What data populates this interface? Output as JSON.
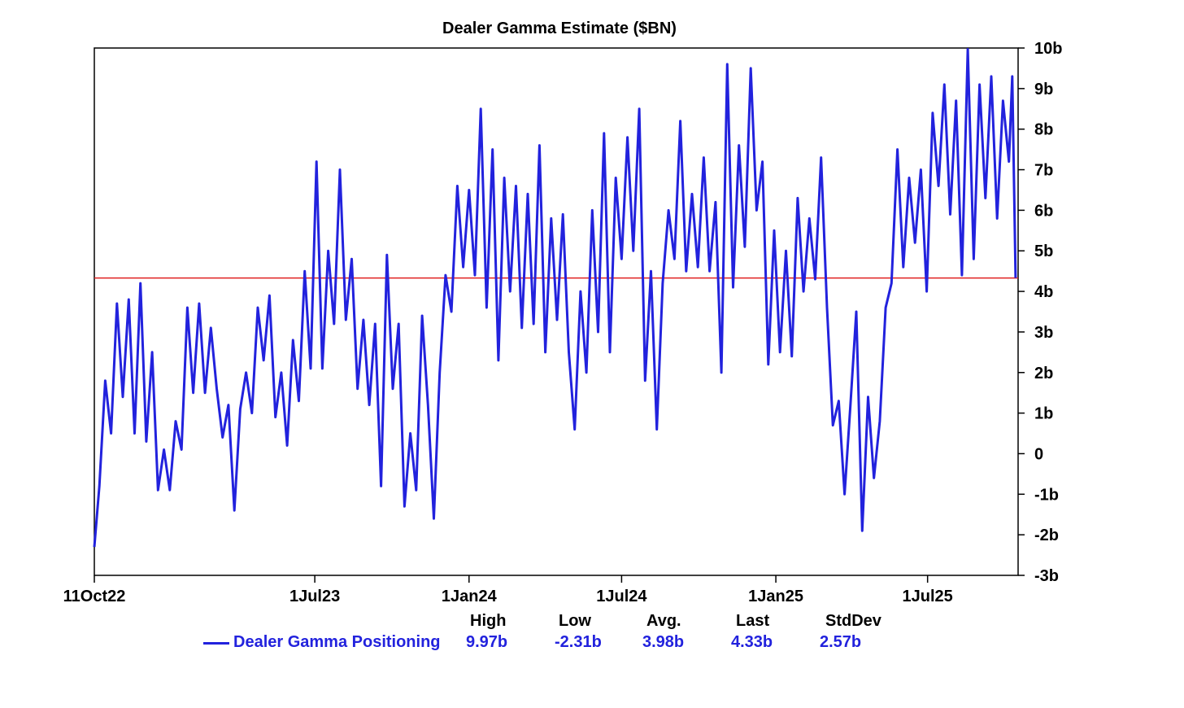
{
  "chart_data": {
    "type": "line",
    "title": "Dealer Gamma Estimate ($BN)",
    "xlabel": "",
    "ylabel": "",
    "x_range": [
      "2022-10-11",
      "2025-10-17"
    ],
    "ylim": [
      -3,
      10
    ],
    "y_ticks": [
      -3,
      -2,
      -1,
      0,
      1,
      2,
      3,
      4,
      5,
      6,
      7,
      8,
      9,
      10
    ],
    "y_tick_labels": [
      "-3b",
      "-2b",
      "-1b",
      "0",
      "1b",
      "2b",
      "3b",
      "4b",
      "5b",
      "6b",
      "7b",
      "8b",
      "9b",
      "10b"
    ],
    "x_ticks": [
      {
        "date": "2022-10-11",
        "label": "11Oct22"
      },
      {
        "date": "2023-07-01",
        "label": "1Jul23"
      },
      {
        "date": "2024-01-01",
        "label": "1Jan24"
      },
      {
        "date": "2024-07-01",
        "label": "1Jul24"
      },
      {
        "date": "2025-01-01",
        "label": "1Jan25"
      },
      {
        "date": "2025-07-01",
        "label": "1Jul25"
      }
    ],
    "reference_line": {
      "value": 4.33,
      "color": "#e02020"
    },
    "grid": false,
    "series": [
      {
        "name": "Dealer Gamma Positioning",
        "color": "#2222dd",
        "stats": {
          "high": "9.97b",
          "low": "-2.31b",
          "avg": "3.98b",
          "last": "4.33b",
          "stddev": "2.57b"
        },
        "points": [
          [
            "2022-10-11",
            -2.3
          ],
          [
            "2022-10-17",
            -0.8
          ],
          [
            "2022-10-24",
            1.8
          ],
          [
            "2022-10-31",
            0.5
          ],
          [
            "2022-11-07",
            3.7
          ],
          [
            "2022-11-14",
            1.4
          ],
          [
            "2022-11-21",
            3.8
          ],
          [
            "2022-11-28",
            0.5
          ],
          [
            "2022-12-05",
            4.2
          ],
          [
            "2022-12-12",
            0.3
          ],
          [
            "2022-12-19",
            2.5
          ],
          [
            "2022-12-26",
            -0.9
          ],
          [
            "2023-01-02",
            0.1
          ],
          [
            "2023-01-09",
            -0.9
          ],
          [
            "2023-01-16",
            0.8
          ],
          [
            "2023-01-23",
            0.1
          ],
          [
            "2023-01-30",
            3.6
          ],
          [
            "2023-02-06",
            1.5
          ],
          [
            "2023-02-13",
            3.7
          ],
          [
            "2023-02-20",
            1.5
          ],
          [
            "2023-02-27",
            3.1
          ],
          [
            "2023-03-06",
            1.6
          ],
          [
            "2023-03-13",
            0.4
          ],
          [
            "2023-03-20",
            1.2
          ],
          [
            "2023-03-27",
            -1.4
          ],
          [
            "2023-04-03",
            1.1
          ],
          [
            "2023-04-10",
            2.0
          ],
          [
            "2023-04-17",
            1.0
          ],
          [
            "2023-04-24",
            3.6
          ],
          [
            "2023-05-01",
            2.3
          ],
          [
            "2023-05-08",
            3.9
          ],
          [
            "2023-05-15",
            0.9
          ],
          [
            "2023-05-22",
            2.0
          ],
          [
            "2023-05-29",
            0.2
          ],
          [
            "2023-06-05",
            2.8
          ],
          [
            "2023-06-12",
            1.3
          ],
          [
            "2023-06-19",
            4.5
          ],
          [
            "2023-06-26",
            2.1
          ],
          [
            "2023-07-03",
            7.2
          ],
          [
            "2023-07-10",
            2.1
          ],
          [
            "2023-07-17",
            5.0
          ],
          [
            "2023-07-24",
            3.2
          ],
          [
            "2023-07-31",
            7.0
          ],
          [
            "2023-08-07",
            3.3
          ],
          [
            "2023-08-14",
            4.8
          ],
          [
            "2023-08-21",
            1.6
          ],
          [
            "2023-08-28",
            3.3
          ],
          [
            "2023-09-04",
            1.2
          ],
          [
            "2023-09-11",
            3.2
          ],
          [
            "2023-09-18",
            -0.8
          ],
          [
            "2023-09-25",
            4.9
          ],
          [
            "2023-10-02",
            1.6
          ],
          [
            "2023-10-09",
            3.2
          ],
          [
            "2023-10-16",
            -1.3
          ],
          [
            "2023-10-23",
            0.5
          ],
          [
            "2023-10-30",
            -0.9
          ],
          [
            "2023-11-06",
            3.4
          ],
          [
            "2023-11-13",
            1.2
          ],
          [
            "2023-11-20",
            -1.6
          ],
          [
            "2023-11-27",
            2.0
          ],
          [
            "2023-12-04",
            4.4
          ],
          [
            "2023-12-11",
            3.5
          ],
          [
            "2023-12-18",
            6.6
          ],
          [
            "2023-12-25",
            4.6
          ],
          [
            "2024-01-01",
            6.5
          ],
          [
            "2024-01-08",
            4.4
          ],
          [
            "2024-01-15",
            8.5
          ],
          [
            "2024-01-22",
            3.6
          ],
          [
            "2024-01-29",
            7.5
          ],
          [
            "2024-02-05",
            2.3
          ],
          [
            "2024-02-12",
            6.8
          ],
          [
            "2024-02-19",
            4.0
          ],
          [
            "2024-02-26",
            6.6
          ],
          [
            "2024-03-04",
            3.1
          ],
          [
            "2024-03-11",
            6.4
          ],
          [
            "2024-03-18",
            3.2
          ],
          [
            "2024-03-25",
            7.6
          ],
          [
            "2024-04-01",
            2.5
          ],
          [
            "2024-04-08",
            5.8
          ],
          [
            "2024-04-15",
            3.3
          ],
          [
            "2024-04-22",
            5.9
          ],
          [
            "2024-04-29",
            2.5
          ],
          [
            "2024-05-06",
            0.6
          ],
          [
            "2024-05-13",
            4.0
          ],
          [
            "2024-05-20",
            2.0
          ],
          [
            "2024-05-27",
            6.0
          ],
          [
            "2024-06-03",
            3.0
          ],
          [
            "2024-06-10",
            7.9
          ],
          [
            "2024-06-17",
            2.5
          ],
          [
            "2024-06-24",
            6.8
          ],
          [
            "2024-07-01",
            4.8
          ],
          [
            "2024-07-08",
            7.8
          ],
          [
            "2024-07-15",
            5.0
          ],
          [
            "2024-07-22",
            8.5
          ],
          [
            "2024-07-29",
            1.8
          ],
          [
            "2024-08-05",
            4.5
          ],
          [
            "2024-08-12",
            0.6
          ],
          [
            "2024-08-19",
            4.2
          ],
          [
            "2024-08-26",
            6.0
          ],
          [
            "2024-09-02",
            4.8
          ],
          [
            "2024-09-09",
            8.2
          ],
          [
            "2024-09-16",
            4.5
          ],
          [
            "2024-09-23",
            6.4
          ],
          [
            "2024-09-30",
            4.6
          ],
          [
            "2024-10-07",
            7.3
          ],
          [
            "2024-10-14",
            4.5
          ],
          [
            "2024-10-21",
            6.2
          ],
          [
            "2024-10-28",
            2.0
          ],
          [
            "2024-11-04",
            9.6
          ],
          [
            "2024-11-11",
            4.1
          ],
          [
            "2024-11-18",
            7.6
          ],
          [
            "2024-11-25",
            5.1
          ],
          [
            "2024-12-02",
            9.5
          ],
          [
            "2024-12-09",
            6.0
          ],
          [
            "2024-12-16",
            7.2
          ],
          [
            "2024-12-23",
            2.2
          ],
          [
            "2024-12-30",
            5.5
          ],
          [
            "2025-01-06",
            2.5
          ],
          [
            "2025-01-13",
            5.0
          ],
          [
            "2025-01-20",
            2.4
          ],
          [
            "2025-01-27",
            6.3
          ],
          [
            "2025-02-03",
            4.0
          ],
          [
            "2025-02-10",
            5.8
          ],
          [
            "2025-02-17",
            4.3
          ],
          [
            "2025-02-24",
            7.3
          ],
          [
            "2025-03-03",
            3.6
          ],
          [
            "2025-03-10",
            0.7
          ],
          [
            "2025-03-17",
            1.3
          ],
          [
            "2025-03-24",
            -1.0
          ],
          [
            "2025-03-31",
            1.2
          ],
          [
            "2025-04-07",
            3.5
          ],
          [
            "2025-04-14",
            -1.9
          ],
          [
            "2025-04-21",
            1.4
          ],
          [
            "2025-04-28",
            -0.6
          ],
          [
            "2025-05-05",
            0.8
          ],
          [
            "2025-05-12",
            3.6
          ],
          [
            "2025-05-19",
            4.2
          ],
          [
            "2025-05-26",
            7.5
          ],
          [
            "2025-06-02",
            4.6
          ],
          [
            "2025-06-09",
            6.8
          ],
          [
            "2025-06-16",
            5.2
          ],
          [
            "2025-06-23",
            7.0
          ],
          [
            "2025-06-30",
            4.0
          ],
          [
            "2025-07-07",
            8.4
          ],
          [
            "2025-07-14",
            6.6
          ],
          [
            "2025-07-21",
            9.1
          ],
          [
            "2025-07-28",
            5.9
          ],
          [
            "2025-08-04",
            8.7
          ],
          [
            "2025-08-11",
            4.4
          ],
          [
            "2025-08-18",
            9.97
          ],
          [
            "2025-08-25",
            4.8
          ],
          [
            "2025-09-01",
            9.1
          ],
          [
            "2025-09-08",
            6.3
          ],
          [
            "2025-09-15",
            9.3
          ],
          [
            "2025-09-22",
            5.8
          ],
          [
            "2025-09-29",
            8.7
          ],
          [
            "2025-10-06",
            7.2
          ],
          [
            "2025-10-10",
            9.3
          ],
          [
            "2025-10-14",
            4.33
          ]
        ]
      }
    ]
  },
  "stats_headers": {
    "high": "High",
    "low": "Low",
    "avg": "Avg.",
    "last": "Last",
    "stddev": "StdDev"
  }
}
